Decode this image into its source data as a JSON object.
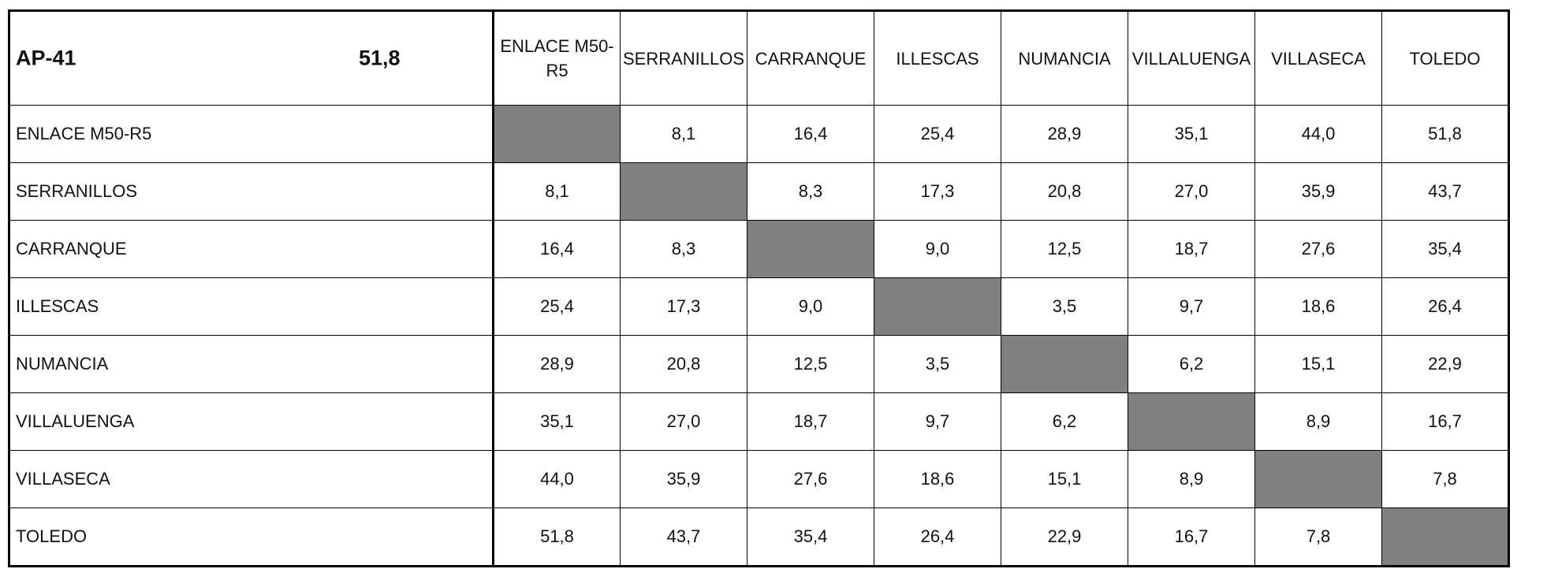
{
  "table": {
    "route": "AP-41",
    "total_km": "51,8",
    "destinations": [
      "ENLACE M50-R5",
      "SERRANILLOS",
      "CARRANQUE",
      "ILLESCAS",
      "NUMANCIA",
      "VILLALUENGA",
      "VILLASECA",
      "TOLEDO"
    ],
    "rows": [
      {
        "origin": "ENLACE M50-R5",
        "cells": [
          "",
          "8,1",
          "16,4",
          "25,4",
          "28,9",
          "35,1",
          "44,0",
          "51,8"
        ]
      },
      {
        "origin": "SERRANILLOS",
        "cells": [
          "8,1",
          "",
          "8,3",
          "17,3",
          "20,8",
          "27,0",
          "35,9",
          "43,7"
        ]
      },
      {
        "origin": "CARRANQUE",
        "cells": [
          "16,4",
          "8,3",
          "",
          "9,0",
          "12,5",
          "18,7",
          "27,6",
          "35,4"
        ]
      },
      {
        "origin": "ILLESCAS",
        "cells": [
          "25,4",
          "17,3",
          "9,0",
          "",
          "3,5",
          "9,7",
          "18,6",
          "26,4"
        ]
      },
      {
        "origin": "NUMANCIA",
        "cells": [
          "28,9",
          "20,8",
          "12,5",
          "3,5",
          "",
          "6,2",
          "15,1",
          "22,9"
        ]
      },
      {
        "origin": "VILLALUENGA",
        "cells": [
          "35,1",
          "27,0",
          "18,7",
          "9,7",
          "6,2",
          "",
          "8,9",
          "16,7"
        ]
      },
      {
        "origin": "VILLASECA",
        "cells": [
          "44,0",
          "35,9",
          "27,6",
          "18,6",
          "15,1",
          "8,9",
          "",
          "7,8"
        ]
      },
      {
        "origin": "TOLEDO",
        "cells": [
          "51,8",
          "43,7",
          "35,4",
          "26,4",
          "22,9",
          "16,7",
          "7,8",
          ""
        ]
      }
    ]
  },
  "colors": {
    "diagonal_fill": "#808080",
    "border": "#000000"
  }
}
